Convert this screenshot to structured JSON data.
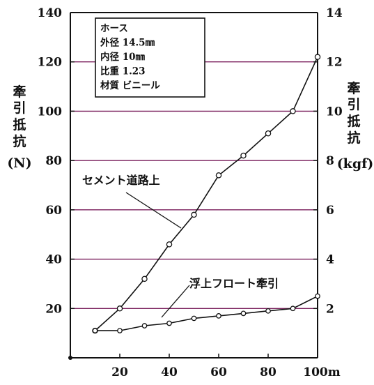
{
  "chart_data": {
    "type": "line",
    "xlabel": "",
    "ylabel_left": [
      "牽",
      "引",
      "抵",
      "抗",
      "(N)"
    ],
    "ylabel_right": [
      "牽",
      "引",
      "抵",
      "抗"
    ],
    "ylabel_right_unit": "(kgf)",
    "xlim": [
      0,
      100
    ],
    "ylim": [
      0,
      140
    ],
    "ylim_right": [
      0,
      14
    ],
    "x_ticks": [
      20,
      40,
      60,
      80
    ],
    "x_tick_last": "100m",
    "y_ticks_left": [
      20,
      40,
      60,
      80,
      100,
      120,
      140
    ],
    "y_ticks_right": [
      2,
      4,
      6,
      8,
      10,
      12,
      14
    ],
    "grid": "horizontal",
    "grid_color": "#7a1f5c",
    "legend_box": {
      "lines": [
        "ホース",
        "外径 14.5㎜",
        "内径 10㎜",
        "比重 1.23",
        "材質 ビニール"
      ]
    },
    "series": [
      {
        "name": "セメント道路上",
        "x": [
          10,
          20,
          30,
          40,
          50,
          60,
          70,
          80,
          90,
          100
        ],
        "y": [
          11,
          20,
          32,
          46,
          58,
          74,
          82,
          91,
          100,
          122
        ]
      },
      {
        "name": "浮上フロート牽引",
        "x": [
          10,
          20,
          30,
          40,
          50,
          60,
          70,
          80,
          90,
          100
        ],
        "y": [
          11,
          11,
          13,
          14,
          16,
          17,
          18,
          19,
          20,
          25
        ]
      }
    ]
  }
}
